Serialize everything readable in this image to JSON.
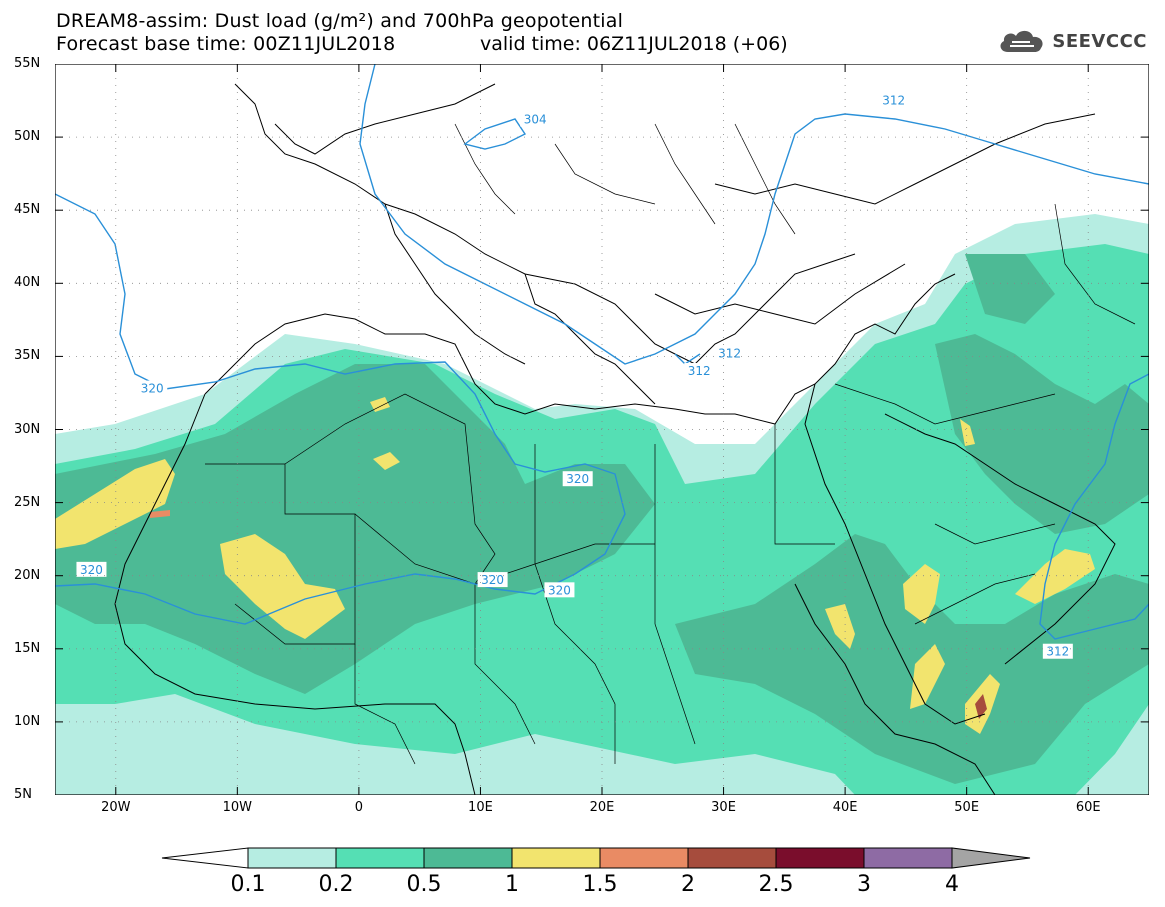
{
  "title": {
    "line1": "DREAM8-assim: Dust load (g/m²) and 700hPa geopotential",
    "line2_left": "Forecast base time: 00Z11JUL2018",
    "line2_right": "valid time: 06Z11JUL2018 (+06)"
  },
  "logo": {
    "text": "SEEVCCC",
    "icon": "cloud-icon",
    "color": "#444444"
  },
  "axes": {
    "x_ticks": [
      "20W",
      "10W",
      "0",
      "10E",
      "20E",
      "30E",
      "40E",
      "50E",
      "60E"
    ],
    "y_ticks": [
      "55N",
      "50N",
      "45N",
      "40N",
      "35N",
      "30N",
      "25N",
      "20N",
      "15N",
      "10N",
      "5N"
    ],
    "lon_range": [
      -25,
      65
    ],
    "lat_range": [
      5,
      55
    ]
  },
  "contour_labels": [
    {
      "text": "304",
      "lon": 14.5,
      "lat": 51.2
    },
    {
      "text": "312",
      "lon": 44,
      "lat": 52.5
    },
    {
      "text": "312",
      "lon": 28,
      "lat": 34
    },
    {
      "text": "312",
      "lon": 30.5,
      "lat": 35.2
    },
    {
      "text": "312",
      "lon": 57.5,
      "lat": 14.8
    },
    {
      "text": "320",
      "lon": -17,
      "lat": 32.8
    },
    {
      "text": "320",
      "lon": 18,
      "lat": 26.6
    },
    {
      "text": "320",
      "lon": -22,
      "lat": 20.4
    },
    {
      "text": "320",
      "lon": 11,
      "lat": 19.7
    },
    {
      "text": "320",
      "lon": 16.5,
      "lat": 19
    }
  ],
  "colorbar": {
    "colors": [
      "#b6ede2",
      "#55dfb4",
      "#4dba95",
      "#f2e46e",
      "#e98b64",
      "#a64c3d",
      "#7a0d2c",
      "#8e6ba4",
      "#a4a4a4"
    ],
    "labels": [
      "0.1",
      "0.2",
      "0.5",
      "1",
      "1.5",
      "2",
      "2.5",
      "3",
      "4"
    ]
  },
  "colors": {
    "geopotential_line": "#2a90d8",
    "border": "#000000"
  }
}
